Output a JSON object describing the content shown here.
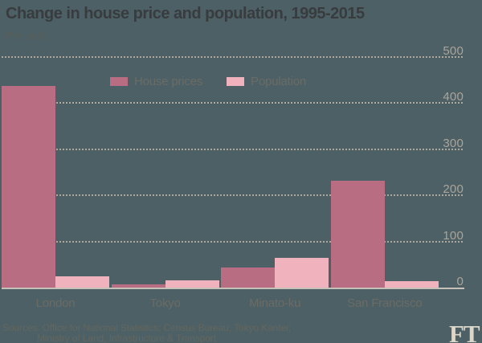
{
  "header": {
    "title": "Change in house price and population, 1995-2015",
    "subtitle": "Per cent"
  },
  "chart_data": {
    "type": "bar",
    "title": "Change in house price and population, 1995-2015",
    "subtitle": "Per cent",
    "categories": [
      "London",
      "Tokyo",
      "Minato-ku",
      "San Francisco"
    ],
    "series": [
      {
        "name": "House prices",
        "color": "#b96d83",
        "values": [
          437,
          7,
          43,
          231
        ]
      },
      {
        "name": "Population",
        "color": "#f0b2bc",
        "values": [
          25,
          15,
          64,
          14
        ]
      }
    ],
    "ylabel": "Per cent",
    "ylim": [
      0,
      500
    ],
    "yticks": [
      0,
      100,
      200,
      300,
      400,
      500
    ],
    "yaxis_side": "right",
    "grid": "dotted-horizontal",
    "legend_position": "top-left-inset"
  },
  "footer": {
    "sources_line1": "Sources: Office for National Statistics; Census Bureau; Tokyo Kantei;",
    "sources_line2": "Ministry of Land, Infrastructure & Transport",
    "logo": "FT"
  },
  "colors": {
    "background": "#4d6065",
    "title_text": "#383c3f",
    "subtitle_text": "#5a5e5a",
    "house_prices_bar": "#b96d83",
    "population_bar": "#f0b2bc",
    "gridline": "#ada79c",
    "ytick_text": "#aba499",
    "xtick_text": "#6b6b65",
    "axis_line": "#c5c0b8",
    "sources_text": "#63665f",
    "ft_logo": "#ddd7c9"
  }
}
